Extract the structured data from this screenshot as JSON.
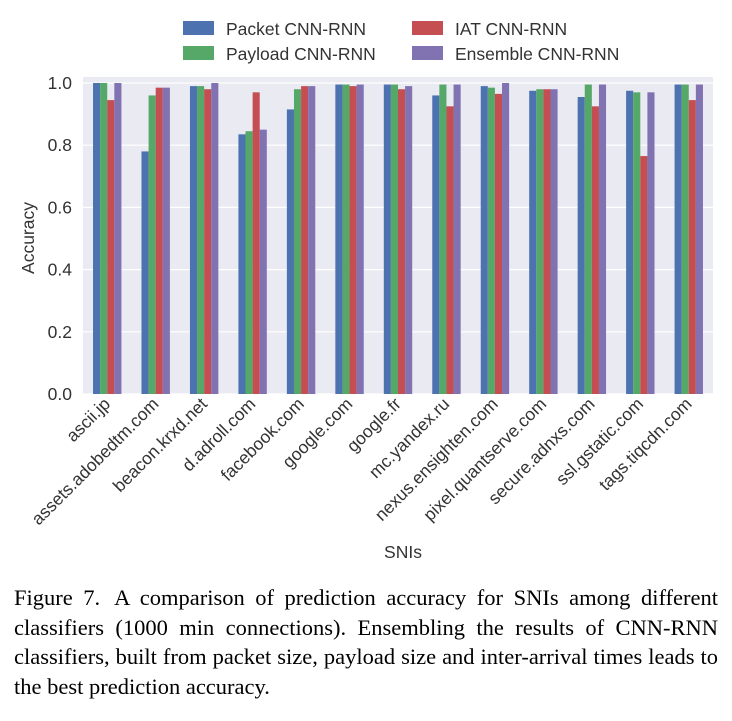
{
  "chart_data": {
    "type": "bar",
    "title": "",
    "xlabel": "SNIs",
    "ylabel": "Accuracy",
    "ylim": [
      0,
      1.0
    ],
    "yticks": [
      "0.0",
      "0.2",
      "0.4",
      "0.6",
      "0.8",
      "1.0"
    ],
    "grid": true,
    "legend_position": "top",
    "categories": [
      "ascii.jp",
      "assets.adobedtm.com",
      "beacon.krxd.net",
      "d.adroll.com",
      "facebook.com",
      "google.com",
      "google.fr",
      "mc.yandex.ru",
      "nexus.ensighten.com",
      "pixel.quantserve.com",
      "secure.adnxs.com",
      "ssl.gstatic.com",
      "tags.tiqcdn.com"
    ],
    "series": [
      {
        "name": "Packet CNN-RNN",
        "color": "#4c72b0",
        "values": [
          1.0,
          0.78,
          0.99,
          0.835,
          0.915,
          0.995,
          0.995,
          0.96,
          0.99,
          0.975,
          0.955,
          0.975,
          0.995
        ]
      },
      {
        "name": "Payload CNN-RNN",
        "color": "#55a868",
        "values": [
          1.0,
          0.96,
          0.99,
          0.845,
          0.98,
          0.995,
          0.995,
          0.995,
          0.985,
          0.98,
          0.995,
          0.97,
          0.995
        ]
      },
      {
        "name": "IAT CNN-RNN",
        "color": "#c44e52",
        "values": [
          0.945,
          0.985,
          0.98,
          0.97,
          0.99,
          0.99,
          0.98,
          0.925,
          0.965,
          0.98,
          0.925,
          0.765,
          0.945
        ]
      },
      {
        "name": "Ensemble CNN-RNN",
        "color": "#8172b2",
        "values": [
          1.0,
          0.985,
          1.0,
          0.85,
          0.99,
          0.995,
          0.99,
          0.995,
          1.0,
          0.98,
          0.995,
          0.97,
          0.995
        ]
      }
    ]
  },
  "caption": {
    "label": "Figure 7.",
    "text": "A comparison of prediction accuracy for SNIs among different classifiers (1000 min connections). Ensembling the results of CNN-RNN classifiers, built from packet size, payload size and inter-arrival times leads to the best prediction accuracy."
  }
}
